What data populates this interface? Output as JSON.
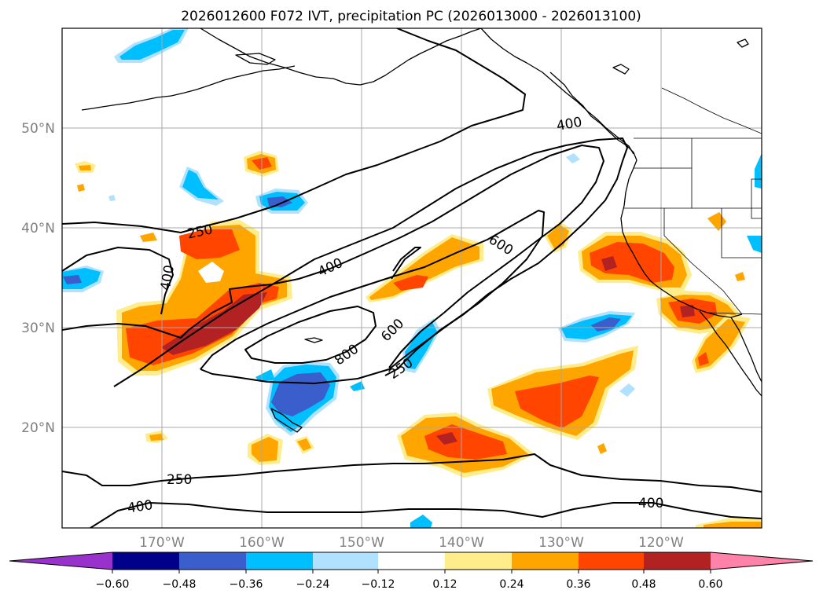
{
  "title": "2026012600 F072 IVT, precipitation PC (2026013000 - 2026013100)",
  "longitude_labels": [
    "170°W",
    "160°W",
    "150°W",
    "140°W",
    "130°W",
    "120°W"
  ],
  "latitude_labels": [
    "50°N",
    "40°N",
    "30°N",
    "20°N"
  ],
  "colorbar": {
    "extend": "both",
    "ticks": [
      "−0.60",
      "−0.48",
      "−0.36",
      "−0.24",
      "−0.12",
      "0.12",
      "0.24",
      "0.36",
      "0.48",
      "0.60"
    ],
    "colors": [
      "#9932cc",
      "#00008b",
      "#3a5fcd",
      "#00bfff",
      "#b0e2ff",
      "#ffffff",
      "#ffec8b",
      "#ffa500",
      "#ff4500",
      "#b22222",
      "#ff82ab"
    ]
  },
  "ivt_contour_labels": [
    "250",
    "400",
    "400",
    "400",
    "600",
    "600",
    "800",
    "250",
    "400",
    "250",
    "400"
  ],
  "colors": {
    "neg_1": "#b0e2ff",
    "neg_2": "#00bfff",
    "neg_3": "#3a5fcd",
    "pos_1": "#ffec8b",
    "pos_2": "#ffa500",
    "pos_3": "#ff4500",
    "pos_4": "#b22222"
  }
}
